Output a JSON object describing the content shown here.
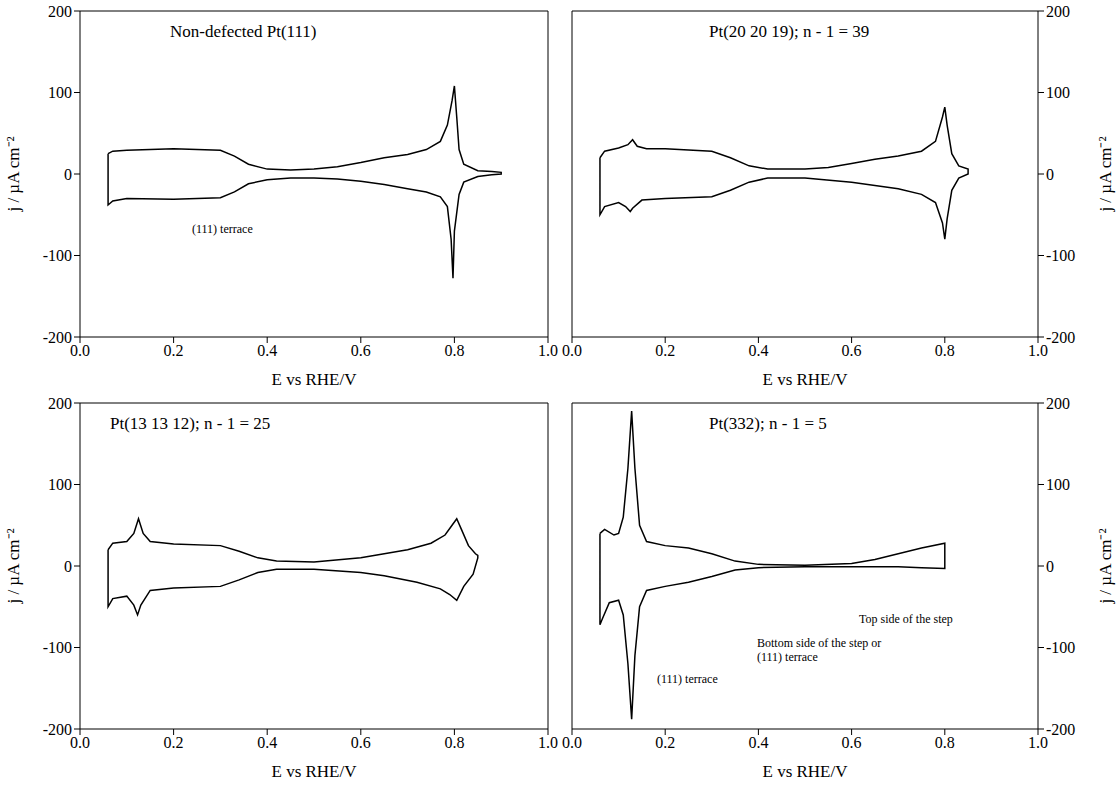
{
  "chart_data": [
    {
      "type": "line",
      "title": "Non-defected Pt(111)",
      "x_label": "E vs RHE/V",
      "y_label": "j / µA cm⁻²",
      "color": "#000000",
      "xlim": [
        0,
        1
      ],
      "xticks": [
        {
          "value": 0,
          "label": "0.0"
        },
        0.2,
        0.4,
        0.6,
        0.8,
        {
          "value": 1,
          "label": "1.0"
        }
      ],
      "ylim": [
        -200,
        200
      ],
      "yticks": [
        -200,
        -100,
        0,
        100,
        200
      ],
      "annotations": [
        "(111) terrace"
      ],
      "x": [
        0.06,
        0.07,
        0.1,
        0.2,
        0.3,
        0.33,
        0.36,
        0.4,
        0.45,
        0.5,
        0.55,
        0.6,
        0.65,
        0.7,
        0.74,
        0.77,
        0.785,
        0.795,
        0.8,
        0.805,
        0.81,
        0.82,
        0.85,
        0.88,
        0.9,
        0.9,
        0.88,
        0.85,
        0.82,
        0.81,
        0.8,
        0.797,
        0.793,
        0.785,
        0.77,
        0.74,
        0.7,
        0.65,
        0.6,
        0.55,
        0.5,
        0.45,
        0.4,
        0.36,
        0.33,
        0.3,
        0.2,
        0.1,
        0.07,
        0.06,
        0.06
      ],
      "values": [
        25,
        28,
        29,
        31,
        29,
        22,
        12,
        6,
        5,
        6,
        9,
        14,
        20,
        24,
        30,
        40,
        60,
        90,
        108,
        70,
        30,
        12,
        4,
        3,
        2,
        0,
        -1,
        -3,
        -10,
        -25,
        -70,
        -128,
        -80,
        -40,
        -28,
        -22,
        -18,
        -13,
        -9,
        -6,
        -5,
        -5,
        -7,
        -12,
        -22,
        -29,
        -31,
        -30,
        -33,
        -38,
        25
      ]
    },
    {
      "type": "line",
      "title": "Pt(20 20 19); n - 1 = 39",
      "x_label": "E vs RHE/V",
      "y_label": "j / µA cm⁻²",
      "color": "#000000",
      "xlim": [
        0,
        1
      ],
      "xticks": [
        {
          "value": 0,
          "label": "0.0"
        },
        0.2,
        0.4,
        0.6,
        0.8,
        {
          "value": 1,
          "label": "1.0"
        }
      ],
      "ylim": [
        -200,
        200
      ],
      "yticks": [
        -200,
        -100,
        0,
        100,
        200
      ],
      "annotations": [],
      "x": [
        0.06,
        0.07,
        0.1,
        0.12,
        0.13,
        0.14,
        0.16,
        0.2,
        0.3,
        0.34,
        0.38,
        0.42,
        0.5,
        0.55,
        0.6,
        0.65,
        0.7,
        0.75,
        0.78,
        0.795,
        0.8,
        0.805,
        0.815,
        0.83,
        0.85,
        0.85,
        0.83,
        0.815,
        0.805,
        0.8,
        0.795,
        0.78,
        0.75,
        0.7,
        0.6,
        0.5,
        0.42,
        0.38,
        0.34,
        0.3,
        0.2,
        0.15,
        0.13,
        0.125,
        0.115,
        0.1,
        0.07,
        0.06,
        0.06
      ],
      "values": [
        20,
        28,
        32,
        36,
        42,
        34,
        31,
        31,
        28,
        20,
        10,
        6,
        6,
        8,
        13,
        18,
        22,
        28,
        40,
        70,
        82,
        60,
        25,
        10,
        6,
        0,
        -5,
        -20,
        -55,
        -80,
        -60,
        -35,
        -25,
        -18,
        -10,
        -5,
        -5,
        -10,
        -20,
        -28,
        -30,
        -32,
        -42,
        -46,
        -40,
        -35,
        -40,
        -50,
        20
      ]
    },
    {
      "type": "line",
      "title": "Pt(13 13 12); n - 1 = 25",
      "x_label": "E vs RHE/V",
      "y_label": "j / µA cm⁻²",
      "color": "#000000",
      "xlim": [
        0,
        1
      ],
      "xticks": [
        {
          "value": 0,
          "label": "0.0"
        },
        0.2,
        0.4,
        0.6,
        0.8,
        {
          "value": 1,
          "label": "1.0"
        }
      ],
      "ylim": [
        -200,
        200
      ],
      "yticks": [
        -200,
        -100,
        0,
        100,
        200
      ],
      "annotations": [],
      "x": [
        0.06,
        0.07,
        0.1,
        0.115,
        0.125,
        0.135,
        0.15,
        0.2,
        0.3,
        0.34,
        0.38,
        0.42,
        0.5,
        0.6,
        0.65,
        0.7,
        0.75,
        0.78,
        0.795,
        0.805,
        0.815,
        0.83,
        0.845,
        0.85,
        0.85,
        0.84,
        0.82,
        0.805,
        0.79,
        0.77,
        0.72,
        0.65,
        0.6,
        0.5,
        0.42,
        0.38,
        0.34,
        0.3,
        0.2,
        0.15,
        0.13,
        0.123,
        0.115,
        0.1,
        0.07,
        0.06,
        0.06
      ],
      "values": [
        20,
        28,
        30,
        40,
        58,
        40,
        30,
        27,
        25,
        18,
        10,
        6,
        5,
        10,
        15,
        20,
        28,
        38,
        50,
        58,
        45,
        25,
        15,
        13,
        10,
        -10,
        -25,
        -42,
        -35,
        -28,
        -20,
        -12,
        -8,
        -4,
        -4,
        -8,
        -17,
        -25,
        -27,
        -30,
        -48,
        -60,
        -48,
        -37,
        -40,
        -50,
        20
      ]
    },
    {
      "type": "line",
      "title": "Pt(332); n - 1 = 5",
      "x_label": "E vs RHE/V",
      "y_label": "j / µA cm⁻²",
      "color": "#000000",
      "xlim": [
        0,
        1
      ],
      "xticks": [
        {
          "value": 0,
          "label": "0.0"
        },
        0.2,
        0.4,
        0.6,
        0.8,
        {
          "value": 1,
          "label": "1.0"
        }
      ],
      "ylim": [
        -200,
        200
      ],
      "yticks": [
        -200,
        -100,
        0,
        100,
        200
      ],
      "annotations": [
        "Top side of the step",
        "Bottom side of the step or (111) terrace",
        "(111) terrace"
      ],
      "x": [
        0.06,
        0.07,
        0.09,
        0.1,
        0.11,
        0.12,
        0.128,
        0.135,
        0.145,
        0.16,
        0.2,
        0.25,
        0.3,
        0.35,
        0.4,
        0.5,
        0.6,
        0.65,
        0.7,
        0.75,
        0.8,
        0.8,
        0.75,
        0.7,
        0.6,
        0.5,
        0.4,
        0.35,
        0.3,
        0.25,
        0.2,
        0.16,
        0.145,
        0.135,
        0.128,
        0.12,
        0.11,
        0.1,
        0.08,
        0.065,
        0.06,
        0.06
      ],
      "values": [
        40,
        45,
        38,
        40,
        60,
        120,
        190,
        120,
        50,
        30,
        25,
        22,
        15,
        6,
        2,
        1,
        3,
        8,
        15,
        22,
        28,
        -3,
        -2,
        -1,
        -1,
        -1,
        -2,
        -5,
        -13,
        -20,
        -25,
        -30,
        -50,
        -110,
        -188,
        -120,
        -60,
        -42,
        -45,
        -65,
        -72,
        40
      ]
    }
  ]
}
